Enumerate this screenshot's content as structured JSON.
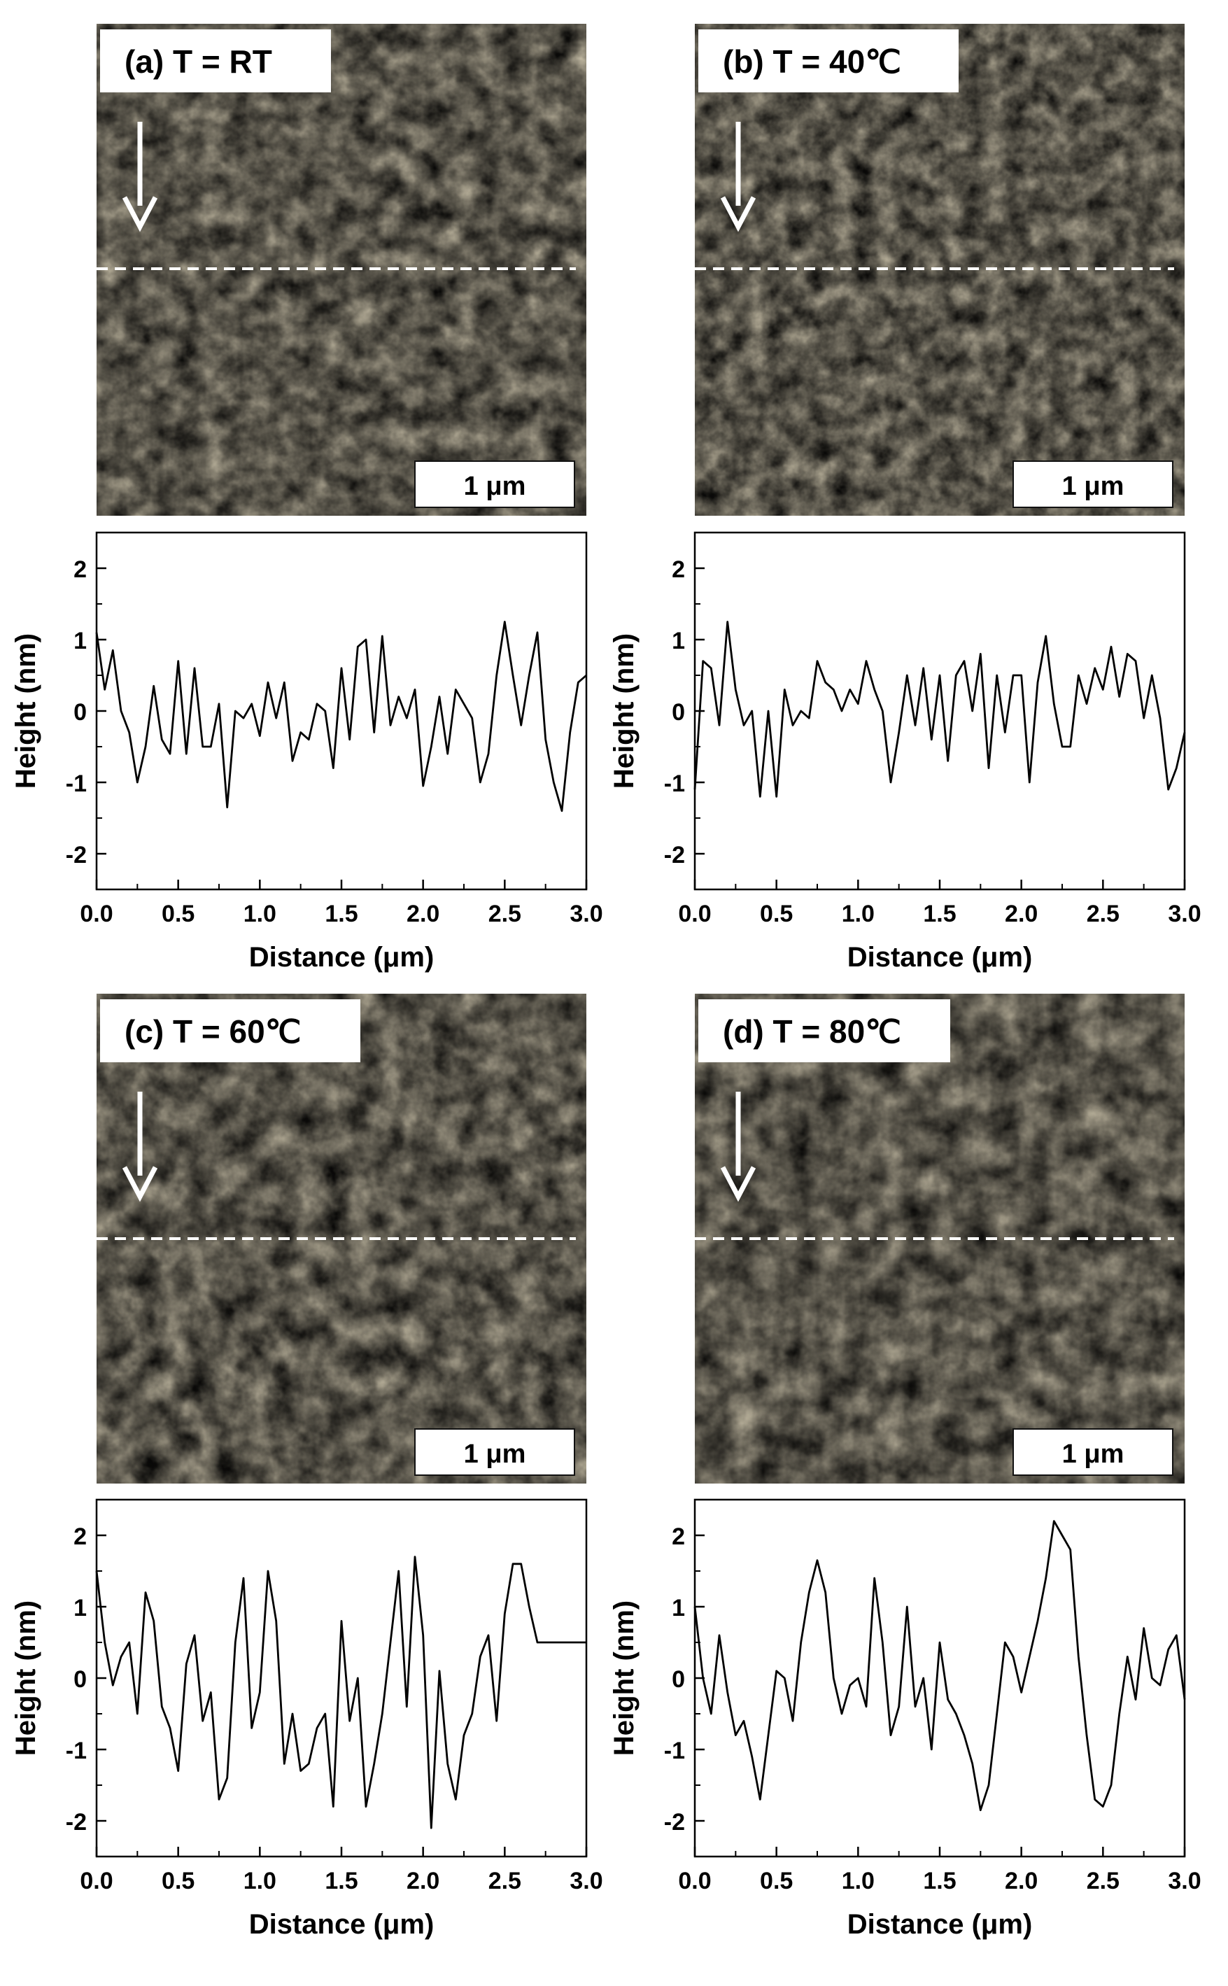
{
  "figure": {
    "panels": [
      {
        "label": "(a) T = RT",
        "scalebar": "1 μm"
      },
      {
        "label": "(b) T = 40℃",
        "scalebar": "1 μm"
      },
      {
        "label": "(c) T = 60℃",
        "scalebar": "1 μm"
      },
      {
        "label": "(d) T = 80℃",
        "scalebar": "1 μm"
      }
    ],
    "colors": {
      "line": "#000000",
      "afm_dark": "#2a1400",
      "afm_mid": "#a86a10",
      "afm_light": "#fff4d6",
      "dash": "#ffffff"
    }
  },
  "chart_data": [
    {
      "type": "line",
      "xlabel": "Distance (μm)",
      "ylabel": "Height (nm)",
      "xlim": [
        0,
        3.0
      ],
      "ylim": [
        -2.5,
        2.5
      ],
      "xticks": [
        "0.0",
        "0.5",
        "1.0",
        "1.5",
        "2.0",
        "2.5",
        "3.0"
      ],
      "yticks": [
        "2",
        "1",
        "0",
        "-1",
        "-2"
      ],
      "series": [
        {
          "x": [
            0,
            0.05,
            0.1,
            0.15,
            0.2,
            0.25,
            0.3,
            0.35,
            0.4,
            0.45,
            0.5,
            0.55,
            0.6,
            0.65,
            0.7,
            0.75,
            0.8,
            0.85,
            0.9,
            0.95,
            1.0,
            1.05,
            1.1,
            1.15,
            1.2,
            1.25,
            1.3,
            1.35,
            1.4,
            1.45,
            1.5,
            1.55,
            1.6,
            1.65,
            1.7,
            1.75,
            1.8,
            1.85,
            1.9,
            1.95,
            2.0,
            2.05,
            2.1,
            2.15,
            2.2,
            2.25,
            2.3,
            2.35,
            2.4,
            2.45,
            2.5,
            2.55,
            2.6,
            2.65,
            2.7,
            2.75,
            2.8,
            2.85,
            2.9,
            2.95,
            3.0
          ],
          "y": [
            1.1,
            0.3,
            0.85,
            0.0,
            -0.3,
            -1.0,
            -0.5,
            0.35,
            -0.4,
            -0.6,
            0.7,
            -0.6,
            0.6,
            -0.5,
            -0.5,
            0.1,
            -1.35,
            0.0,
            -0.1,
            0.1,
            -0.35,
            0.4,
            -0.1,
            0.4,
            -0.7,
            -0.3,
            -0.4,
            0.1,
            0.0,
            -0.8,
            0.6,
            -0.4,
            0.9,
            1.0,
            -0.3,
            1.05,
            -0.2,
            0.2,
            -0.1,
            0.3,
            -1.05,
            -0.5,
            0.2,
            -0.6,
            0.3,
            0.1,
            -0.1,
            -1.0,
            -0.6,
            0.5,
            1.25,
            0.5,
            -0.2,
            0.5,
            1.1,
            -0.4,
            -1.0,
            -1.4,
            -0.3,
            0.4,
            0.5
          ]
        }
      ]
    },
    {
      "type": "line",
      "xlabel": "Distance (μm)",
      "ylabel": "Height (nm)",
      "xlim": [
        0,
        3.0
      ],
      "ylim": [
        -2.5,
        2.5
      ],
      "xticks": [
        "0.0",
        "0.5",
        "1.0",
        "1.5",
        "2.0",
        "2.5",
        "3.0"
      ],
      "yticks": [
        "2",
        "1",
        "0",
        "-1",
        "-2"
      ],
      "series": [
        {
          "x": [
            0,
            0.05,
            0.1,
            0.15,
            0.2,
            0.25,
            0.3,
            0.35,
            0.4,
            0.45,
            0.5,
            0.55,
            0.6,
            0.65,
            0.7,
            0.75,
            0.8,
            0.85,
            0.9,
            0.95,
            1.0,
            1.05,
            1.1,
            1.15,
            1.2,
            1.25,
            1.3,
            1.35,
            1.4,
            1.45,
            1.5,
            1.55,
            1.6,
            1.65,
            1.7,
            1.75,
            1.8,
            1.85,
            1.9,
            1.95,
            2.0,
            2.05,
            2.1,
            2.15,
            2.2,
            2.25,
            2.3,
            2.35,
            2.4,
            2.45,
            2.5,
            2.55,
            2.6,
            2.65,
            2.7,
            2.75,
            2.8,
            2.85,
            2.9,
            2.95,
            3.0
          ],
          "y": [
            -1.1,
            0.7,
            0.6,
            -0.2,
            1.25,
            0.3,
            -0.2,
            0.0,
            -1.2,
            0.0,
            -1.2,
            0.3,
            -0.2,
            0.0,
            -0.1,
            0.7,
            0.4,
            0.3,
            0.0,
            0.3,
            0.1,
            0.7,
            0.3,
            0.0,
            -1.0,
            -0.3,
            0.5,
            -0.2,
            0.6,
            -0.4,
            0.5,
            -0.7,
            0.5,
            0.7,
            0.0,
            0.8,
            -0.8,
            0.5,
            -0.3,
            0.5,
            0.5,
            -1.0,
            0.4,
            1.05,
            0.1,
            -0.5,
            -0.5,
            0.5,
            0.1,
            0.6,
            0.3,
            0.9,
            0.2,
            0.8,
            0.7,
            -0.1,
            0.5,
            -0.1,
            -1.1,
            -0.8,
            -0.3
          ]
        }
      ]
    },
    {
      "type": "line",
      "xlabel": "Distance (μm)",
      "ylabel": "Height (nm)",
      "xlim": [
        0,
        3.0
      ],
      "ylim": [
        -2.5,
        2.5
      ],
      "xticks": [
        "0.0",
        "0.5",
        "1.0",
        "1.5",
        "2.0",
        "2.5",
        "3.0"
      ],
      "yticks": [
        "2",
        "1",
        "0",
        "-1",
        "-2"
      ],
      "series": [
        {
          "x": [
            0,
            0.05,
            0.1,
            0.15,
            0.2,
            0.25,
            0.3,
            0.35,
            0.4,
            0.45,
            0.5,
            0.55,
            0.6,
            0.65,
            0.7,
            0.75,
            0.8,
            0.85,
            0.9,
            0.95,
            1.0,
            1.05,
            1.1,
            1.15,
            1.2,
            1.25,
            1.3,
            1.35,
            1.4,
            1.45,
            1.5,
            1.55,
            1.6,
            1.65,
            1.7,
            1.75,
            1.8,
            1.85,
            1.9,
            1.95,
            2.0,
            2.05,
            2.1,
            2.15,
            2.2,
            2.25,
            2.3,
            2.35,
            2.4,
            2.45,
            2.5,
            2.55,
            2.6,
            2.65,
            2.7,
            2.75,
            2.8,
            2.85,
            2.9,
            2.95,
            3.0
          ],
          "y": [
            1.5,
            0.5,
            -0.1,
            0.3,
            0.5,
            -0.5,
            1.2,
            0.8,
            -0.4,
            -0.7,
            -1.3,
            0.2,
            0.6,
            -0.6,
            -0.2,
            -1.7,
            -1.4,
            0.5,
            1.4,
            -0.7,
            -0.2,
            1.5,
            0.8,
            -1.2,
            -0.5,
            -1.3,
            -1.2,
            -0.7,
            -0.5,
            -1.8,
            0.8,
            -0.6,
            0.0,
            -1.8,
            -1.2,
            -0.5,
            0.5,
            1.5,
            -0.4,
            1.7,
            0.6,
            -2.1,
            0.1,
            -1.2,
            -1.7,
            -0.8,
            -0.5,
            0.3,
            0.6,
            -0.6,
            0.9,
            1.6,
            1.6,
            1.0,
            0.5,
            0.5,
            0.5,
            0.5,
            0.5,
            0.5,
            0.5
          ]
        }
      ]
    },
    {
      "type": "line",
      "xlabel": "Distance (μm)",
      "ylabel": "Height (nm)",
      "xlim": [
        0,
        3.0
      ],
      "ylim": [
        -2.5,
        2.5
      ],
      "xticks": [
        "0.0",
        "0.5",
        "1.0",
        "1.5",
        "2.0",
        "2.5",
        "3.0"
      ],
      "yticks": [
        "2",
        "1",
        "0",
        "-1",
        "-2"
      ],
      "series": [
        {
          "x": [
            0,
            0.05,
            0.1,
            0.15,
            0.2,
            0.25,
            0.3,
            0.35,
            0.4,
            0.45,
            0.5,
            0.55,
            0.6,
            0.65,
            0.7,
            0.75,
            0.8,
            0.85,
            0.9,
            0.95,
            1.0,
            1.05,
            1.1,
            1.15,
            1.2,
            1.25,
            1.3,
            1.35,
            1.4,
            1.45,
            1.5,
            1.55,
            1.6,
            1.65,
            1.7,
            1.75,
            1.8,
            1.85,
            1.9,
            1.95,
            2.0,
            2.05,
            2.1,
            2.15,
            2.2,
            2.25,
            2.3,
            2.35,
            2.4,
            2.45,
            2.5,
            2.55,
            2.6,
            2.65,
            2.7,
            2.75,
            2.8,
            2.85,
            2.9,
            2.95,
            3.0
          ],
          "y": [
            1.0,
            0.0,
            -0.5,
            0.6,
            -0.2,
            -0.8,
            -0.6,
            -1.1,
            -1.7,
            -0.8,
            0.1,
            0.0,
            -0.6,
            0.5,
            1.2,
            1.65,
            1.2,
            0.0,
            -0.5,
            -0.1,
            0.0,
            -0.4,
            1.4,
            0.5,
            -0.8,
            -0.4,
            1.0,
            -0.4,
            0.0,
            -1.0,
            0.5,
            -0.3,
            -0.5,
            -0.8,
            -1.2,
            -1.85,
            -1.5,
            -0.5,
            0.5,
            0.3,
            -0.2,
            0.3,
            0.8,
            1.4,
            2.2,
            2.0,
            1.8,
            0.3,
            -0.8,
            -1.7,
            -1.8,
            -1.5,
            -0.5,
            0.3,
            -0.3,
            0.7,
            0.0,
            -0.1,
            0.4,
            0.6,
            -0.3
          ]
        }
      ]
    }
  ]
}
